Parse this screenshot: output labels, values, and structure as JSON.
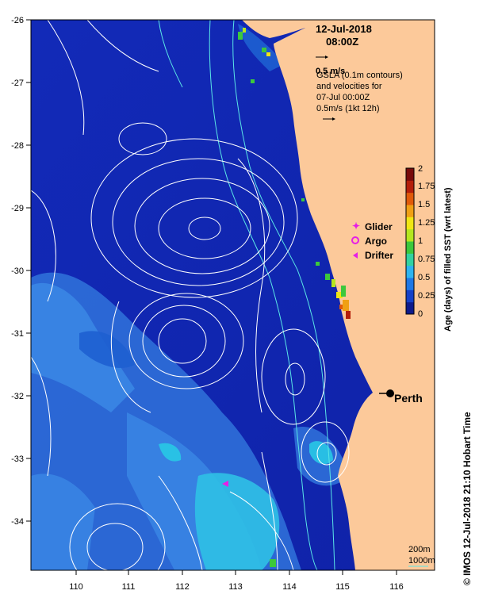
{
  "map": {
    "date": "12-Jul-2018",
    "time": "08:00Z",
    "vector_scale_label": "0.5 m/s",
    "gsla_text": [
      "GSLA (0.1m contours)",
      "and velocities for",
      "07-Jul 00:00Z",
      "0.5m/s (1kt 12h)"
    ],
    "city": "Perth",
    "bathymetry_labels": [
      "200m",
      "1000m"
    ],
    "credit": "© IMOS 12-Jul-2018 21:10 Hobart Time",
    "lon_ticks": [
      "110",
      "111",
      "112",
      "113",
      "114",
      "115",
      "116"
    ],
    "lat_ticks": [
      "-26",
      "-27",
      "-28",
      "-29",
      "-30",
      "-31",
      "-32",
      "-33",
      "-34"
    ],
    "extent": {
      "lon_min": 109.25,
      "lon_max": 116.95,
      "lat_min": -34.8,
      "lat_max": -26.0
    },
    "perth": {
      "lon": 115.86,
      "lat": -31.95
    }
  },
  "legend": {
    "markers": [
      {
        "label": "Glider",
        "color": "#e61ee6",
        "symbol": "star"
      },
      {
        "label": "Argo",
        "color": "#e61ee6",
        "symbol": "circle"
      },
      {
        "label": "Drifter",
        "color": "#e61ee6",
        "symbol": "triangle"
      }
    ]
  },
  "colorbar": {
    "title": "Age (days) of filled SST (wrt latest)",
    "tick_labels": [
      "0",
      "0.25",
      "0.5",
      "0.75",
      "1",
      "1.25",
      "1.5",
      "1.75",
      "2"
    ],
    "colors": [
      "#0d1a8c",
      "#1440c8",
      "#1e78e6",
      "#2db4f0",
      "#32d2a0",
      "#3cc83c",
      "#b4e61e",
      "#f0e614",
      "#f0a014",
      "#e05a0a",
      "#b41e0a",
      "#780a0a"
    ]
  },
  "colors": {
    "land": "#fcc99a",
    "ocean": "#122ab8",
    "ocean_light": "#3c8ce6",
    "ocean_cyan": "#28c8e6",
    "contour": "#ffffff",
    "bathy": "#5ae6e6",
    "marker": "#e61ee6"
  }
}
